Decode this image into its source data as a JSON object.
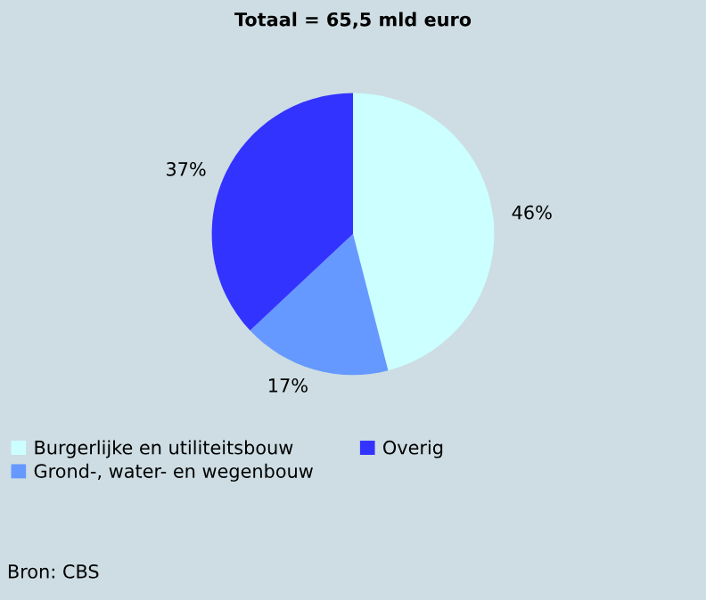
{
  "chart_data": {
    "type": "pie",
    "title": "Totaal = 65,5 mld euro",
    "categories": [
      "Burgerlijke en utiliteitsbouw",
      "Grond-, water- en wegenbouw",
      "Overig"
    ],
    "values": [
      46,
      17,
      37
    ],
    "colors": [
      "#ccffff",
      "#6699ff",
      "#3333ff"
    ],
    "value_labels": [
      "46%",
      "17%",
      "37%"
    ],
    "legend": "bottom",
    "annotations": [
      "Bron: CBS"
    ]
  }
}
